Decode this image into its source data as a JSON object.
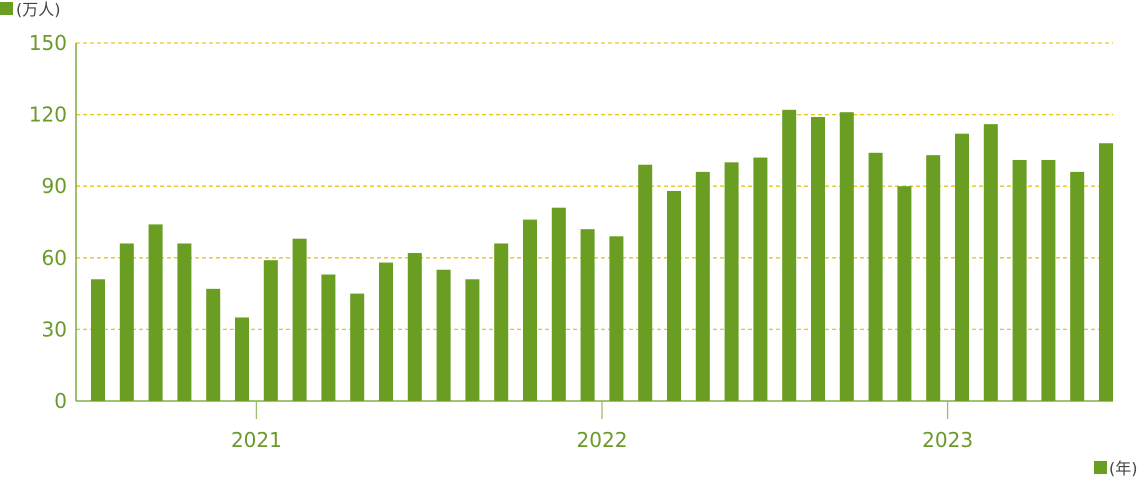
{
  "chart_data": {
    "type": "bar",
    "y_unit_label": "(万人)",
    "x_unit_label": "(年)",
    "ylim": [
      0,
      150
    ],
    "yticks": [
      0,
      30,
      60,
      90,
      120,
      150
    ],
    "grid": "horizontal dashed",
    "year_labels": [
      "2021",
      "2022",
      "2023"
    ],
    "year_label_after_bar_index": [
      5,
      17,
      29
    ],
    "values": [
      51,
      66,
      74,
      66,
      47,
      35,
      59,
      68,
      53,
      45,
      58,
      62,
      55,
      51,
      66,
      76,
      81,
      72,
      69,
      99,
      88,
      96,
      100,
      102,
      122,
      119,
      121,
      104,
      90,
      103,
      112,
      116,
      101,
      101,
      96,
      108
    ]
  },
  "colors": {
    "bar": "#6a9e22",
    "axis": "#6a9e22",
    "grid": "#e6c619",
    "text": "#6b9a2a"
  }
}
